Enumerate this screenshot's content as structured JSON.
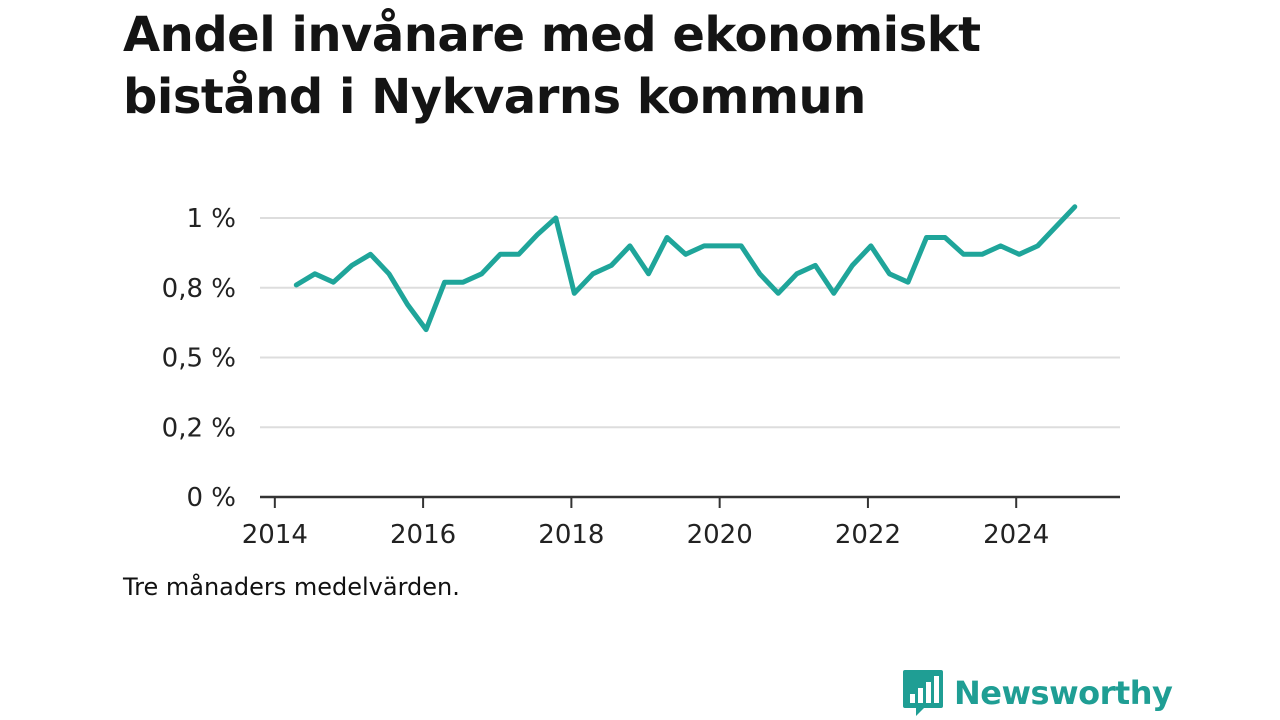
{
  "title": "Andel invånare med ekonomiskt bistånd i Nykvarns kommun",
  "note": "Tre månaders medelvärden.",
  "brand": {
    "name": "Newsworthy",
    "icon": "bar-chart-speech-bubble-icon",
    "color": "#1f9e94"
  },
  "colors": {
    "line": "#1fa59a",
    "grid": "#dddddd",
    "axis": "#333333",
    "text": "#222222"
  },
  "chart_data": {
    "type": "line",
    "title": "Andel invånare med ekonomiskt bistånd i Nykvarns kommun",
    "xlabel": "",
    "ylabel": "",
    "x_range": [
      2013.8,
      2025.4
    ],
    "ylim": [
      0,
      1
    ],
    "y_ticks": [
      {
        "value": 0,
        "label": "0 %"
      },
      {
        "value": 0.25,
        "label": "0,2 %"
      },
      {
        "value": 0.5,
        "label": "0,5 %"
      },
      {
        "value": 0.75,
        "label": "0,8 %"
      },
      {
        "value": 1.0,
        "label": "1 %"
      }
    ],
    "x_ticks": [
      {
        "value": 2014,
        "label": "2014"
      },
      {
        "value": 2016,
        "label": "2016"
      },
      {
        "value": 2018,
        "label": "2018"
      },
      {
        "value": 2020,
        "label": "2020"
      },
      {
        "value": 2022,
        "label": "2022"
      },
      {
        "value": 2024,
        "label": "2024"
      }
    ],
    "grid": true,
    "legend": "none",
    "series": [
      {
        "x": [
          2014.29,
          2014.54,
          2014.79,
          2015.04,
          2015.29,
          2015.54,
          2015.79,
          2016.04,
          2016.29,
          2016.54,
          2016.79,
          2017.04,
          2017.29,
          2017.54,
          2017.79,
          2018.04,
          2018.29,
          2018.54,
          2018.79,
          2019.04,
          2019.29,
          2019.54,
          2019.79,
          2020.04,
          2020.29,
          2020.54,
          2020.79,
          2021.04,
          2021.29,
          2021.54,
          2021.79,
          2022.04,
          2022.29,
          2022.54,
          2022.79,
          2023.04,
          2023.29,
          2023.54,
          2023.79,
          2024.04,
          2024.29,
          2024.54,
          2024.79
        ],
        "values": [
          0.76,
          0.8,
          0.77,
          0.83,
          0.87,
          0.8,
          0.69,
          0.6,
          0.77,
          0.77,
          0.8,
          0.87,
          0.87,
          0.94,
          1.0,
          0.73,
          0.8,
          0.83,
          0.9,
          0.8,
          0.93,
          0.87,
          0.9,
          0.9,
          0.9,
          0.8,
          0.73,
          0.8,
          0.83,
          0.73,
          0.83,
          0.9,
          0.8,
          0.77,
          0.93,
          0.93,
          0.87,
          0.87,
          0.9,
          0.87,
          0.9,
          0.97,
          1.04
        ]
      }
    ]
  }
}
